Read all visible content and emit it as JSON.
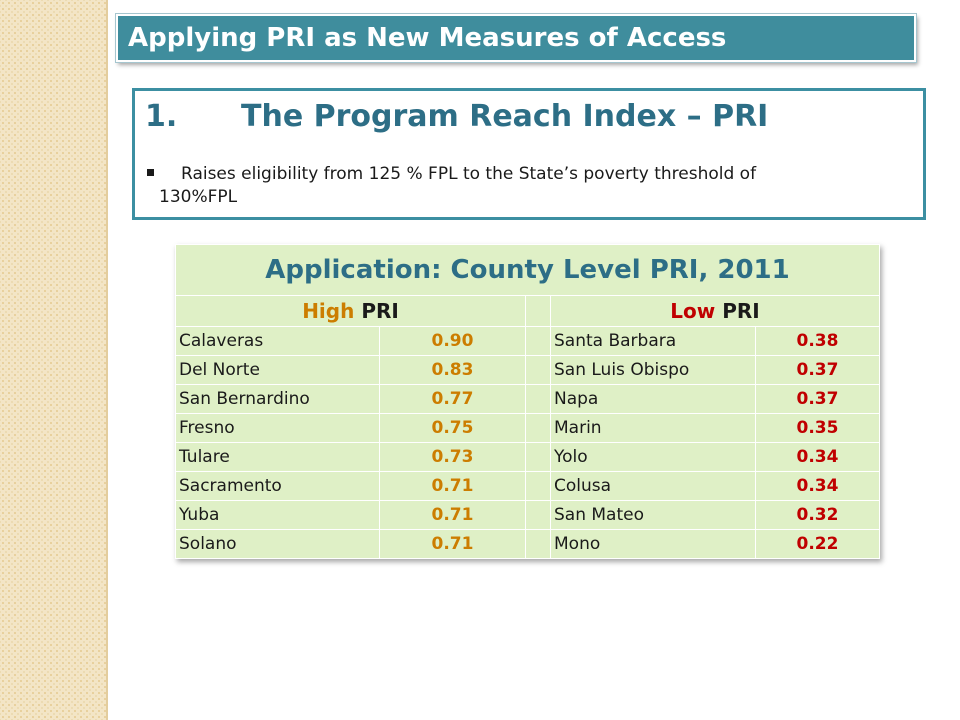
{
  "slide_title": "Applying PRI as New Measures of Access",
  "section": {
    "number": "1.",
    "heading": "The Program Reach Index – PRI",
    "bullet_line1": "Raises eligibility from 125 % FPL to  the State’s poverty threshold of",
    "bullet_line2": "130%FPL"
  },
  "table": {
    "title": "Application: County Level PRI, 2011",
    "high_word": "High",
    "low_word": "Low",
    "pri_word": "PRI",
    "rows": [
      {
        "high_county": "Calaveras",
        "high_value": "0.90",
        "low_county": "Santa Barbara",
        "low_value": "0.38"
      },
      {
        "high_county": "Del Norte",
        "high_value": "0.83",
        "low_county": "San Luis Obispo",
        "low_value": "0.37"
      },
      {
        "high_county": "San Bernardino",
        "high_value": "0.77",
        "low_county": "Napa",
        "low_value": "0.37"
      },
      {
        "high_county": "Fresno",
        "high_value": "0.75",
        "low_county": "Marin",
        "low_value": "0.35"
      },
      {
        "high_county": "Tulare",
        "high_value": "0.73",
        "low_county": "Yolo",
        "low_value": "0.34"
      },
      {
        "high_county": "Sacramento",
        "high_value": "0.71",
        "low_county": "Colusa",
        "low_value": "0.34"
      },
      {
        "high_county": "Yuba",
        "high_value": "0.71",
        "low_county": "San Mateo",
        "low_value": "0.32"
      },
      {
        "high_county": "Solano",
        "high_value": "0.71",
        "low_county": "Mono",
        "low_value": "0.22"
      }
    ]
  },
  "colors": {
    "banner": "#3f8d9d",
    "heading": "#2d6e86",
    "table_bg": "#dff0c6",
    "high_value": "#cc7d00",
    "low_value": "#c00000"
  }
}
